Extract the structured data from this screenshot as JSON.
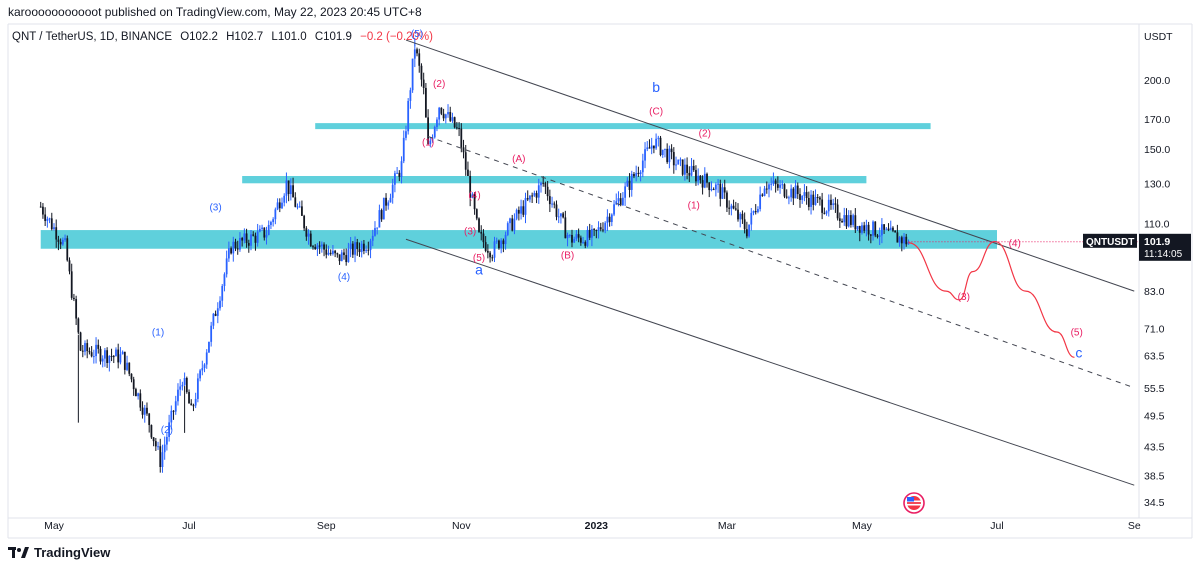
{
  "header": {
    "published_line": "karooooooooooot published on TradingView.com, May 22, 2023 20:45 UTC+8"
  },
  "symbol_info": {
    "title": "QNT / TetherUS, 1D, BINANCE",
    "open": "O102.2",
    "high": "H102.7",
    "low": "L101.0",
    "close": "C101.9",
    "change": "−0.2 (−0.20%)"
  },
  "price_scale": {
    "currency": "USDT",
    "ticks": [
      "200.0",
      "170.0",
      "150.0",
      "130.0",
      "110.0",
      "83.0",
      "71.0",
      "63.5",
      "55.5",
      "49.5",
      "43.5",
      "38.5",
      "34.5"
    ]
  },
  "price_label": {
    "symbol": "QNTUSDT",
    "price": "101.9",
    "countdown": "11:14:05"
  },
  "footer": {
    "brand": "TradingView"
  },
  "colors": {
    "up": "#2962ff",
    "down": "#131722",
    "zone": "#5fd0dc",
    "wave_blue": "#2962ff",
    "wave_red": "#e91e63",
    "channel": "#434651"
  },
  "chart_data": {
    "type": "candlestick",
    "title": "QNT / TetherUS, 1D, BINANCE",
    "ylabel": "USDT",
    "y_scale": "log",
    "ylim": [
      33,
      245
    ],
    "x_tick_labels": [
      "May",
      "Jul",
      "Sep",
      "Nov",
      "2023",
      "Mar",
      "May",
      "Jul",
      "Se"
    ],
    "last_price": 101.9,
    "close_path_approx": [
      {
        "date": "2022-04-25",
        "close": 118
      },
      {
        "date": "2022-05-06",
        "close": 100
      },
      {
        "date": "2022-05-13",
        "close": 65
      },
      {
        "date": "2022-06-01",
        "close": 63
      },
      {
        "date": "2022-06-13",
        "close": 48
      },
      {
        "date": "2022-06-18",
        "close": 41
      },
      {
        "date": "2022-06-28",
        "close": 58
      },
      {
        "date": "2022-07-02",
        "close": 50
      },
      {
        "date": "2022-07-10",
        "close": 68
      },
      {
        "date": "2022-07-20",
        "close": 100
      },
      {
        "date": "2022-08-05",
        "close": 106
      },
      {
        "date": "2022-08-14",
        "close": 130
      },
      {
        "date": "2022-08-25",
        "close": 103
      },
      {
        "date": "2022-09-06",
        "close": 95
      },
      {
        "date": "2022-09-20",
        "close": 102
      },
      {
        "date": "2022-10-05",
        "close": 140
      },
      {
        "date": "2022-10-11",
        "close": 230
      },
      {
        "date": "2022-10-15",
        "close": 190
      },
      {
        "date": "2022-10-17",
        "close": 150
      },
      {
        "date": "2022-10-22",
        "close": 180
      },
      {
        "date": "2022-10-31",
        "close": 160
      },
      {
        "date": "2022-11-09",
        "close": 104
      },
      {
        "date": "2022-11-15",
        "close": 98
      },
      {
        "date": "2022-11-28",
        "close": 116
      },
      {
        "date": "2022-12-08",
        "close": 130
      },
      {
        "date": "2022-12-20",
        "close": 103
      },
      {
        "date": "2022-12-31",
        "close": 104
      },
      {
        "date": "2023-01-15",
        "close": 128
      },
      {
        "date": "2023-01-27",
        "close": 155
      },
      {
        "date": "2023-02-07",
        "close": 140
      },
      {
        "date": "2023-02-17",
        "close": 133
      },
      {
        "date": "2023-02-25",
        "close": 127
      },
      {
        "date": "2023-03-10",
        "close": 107
      },
      {
        "date": "2023-03-18",
        "close": 130
      },
      {
        "date": "2023-04-01",
        "close": 125
      },
      {
        "date": "2023-04-15",
        "close": 118
      },
      {
        "date": "2023-04-28",
        "close": 110
      },
      {
        "date": "2023-05-10",
        "close": 106
      },
      {
        "date": "2023-05-22",
        "close": 101.9
      }
    ],
    "horizontal_zones": [
      {
        "from": "2022-08-27",
        "to": "2023-06-01",
        "low": 163,
        "high": 167
      },
      {
        "from": "2022-07-25",
        "to": "2023-05-03",
        "low": 130,
        "high": 134
      },
      {
        "from": "2022-04-25",
        "to": "2023-07-01",
        "low": 99,
        "high": 107
      }
    ],
    "channel": {
      "upper": {
        "from": [
          "2022-10-07",
          236
        ],
        "to": [
          "2023-09-01",
          83
        ]
      },
      "middle": {
        "from": [
          "2022-10-17",
          158
        ],
        "to": [
          "2023-09-01",
          55.5
        ]
      },
      "lower": {
        "from": [
          "2022-10-07",
          103
        ],
        "to": [
          "2023-09-01",
          37
        ]
      }
    },
    "projection_path": [
      [
        "2023-05-22",
        101.5
      ],
      [
        "2023-06-08",
        83
      ],
      [
        "2023-06-14",
        80
      ],
      [
        "2023-06-20",
        90
      ],
      [
        "2023-06-30",
        102
      ],
      [
        "2023-07-14",
        83
      ],
      [
        "2023-07-28",
        70
      ],
      [
        "2023-08-05",
        63
      ]
    ],
    "wave_labels": [
      {
        "text": "(5)",
        "color": "blue",
        "date": "2022-10-12",
        "price": 239
      },
      {
        "text": "(2)",
        "color": "red",
        "date": "2022-10-22",
        "price": 194
      },
      {
        "text": "(1)",
        "color": "red",
        "date": "2022-10-17",
        "price": 152
      },
      {
        "text": "(4)",
        "color": "red",
        "date": "2022-11-07",
        "price": 122
      },
      {
        "text": "(3)",
        "color": "red",
        "date": "2022-11-05",
        "price": 105
      },
      {
        "text": "(5)",
        "color": "red",
        "date": "2022-11-09",
        "price": 94
      },
      {
        "text": "a",
        "color": "blue",
        "date": "2022-11-09",
        "price": 89
      },
      {
        "text": "(A)",
        "color": "red",
        "date": "2022-11-27",
        "price": 142
      },
      {
        "text": "(B)",
        "color": "red",
        "date": "2022-12-19",
        "price": 95
      },
      {
        "text": "b",
        "color": "blue",
        "date": "2023-01-28",
        "price": 190
      },
      {
        "text": "(C)",
        "color": "red",
        "date": "2023-01-28",
        "price": 173
      },
      {
        "text": "(2)",
        "color": "red",
        "date": "2023-02-19",
        "price": 158
      },
      {
        "text": "(1)",
        "color": "red",
        "date": "2023-02-14",
        "price": 117
      },
      {
        "text": "(3)",
        "color": "red",
        "date": "2023-06-16",
        "price": 80
      },
      {
        "text": "(4)",
        "color": "red",
        "date": "2023-07-09",
        "price": 100
      },
      {
        "text": "(5)",
        "color": "red",
        "date": "2023-08-06",
        "price": 69
      },
      {
        "text": "c",
        "color": "blue",
        "date": "2023-08-07",
        "price": 63
      },
      {
        "text": "(1)",
        "color": "blue",
        "date": "2022-06-17",
        "price": 69
      },
      {
        "text": "(2)",
        "color": "blue",
        "date": "2022-06-21",
        "price": 46
      },
      {
        "text": "(3)",
        "color": "blue",
        "date": "2022-07-13",
        "price": 116
      },
      {
        "text": "(4)",
        "color": "blue",
        "date": "2022-09-09",
        "price": 87
      }
    ]
  }
}
